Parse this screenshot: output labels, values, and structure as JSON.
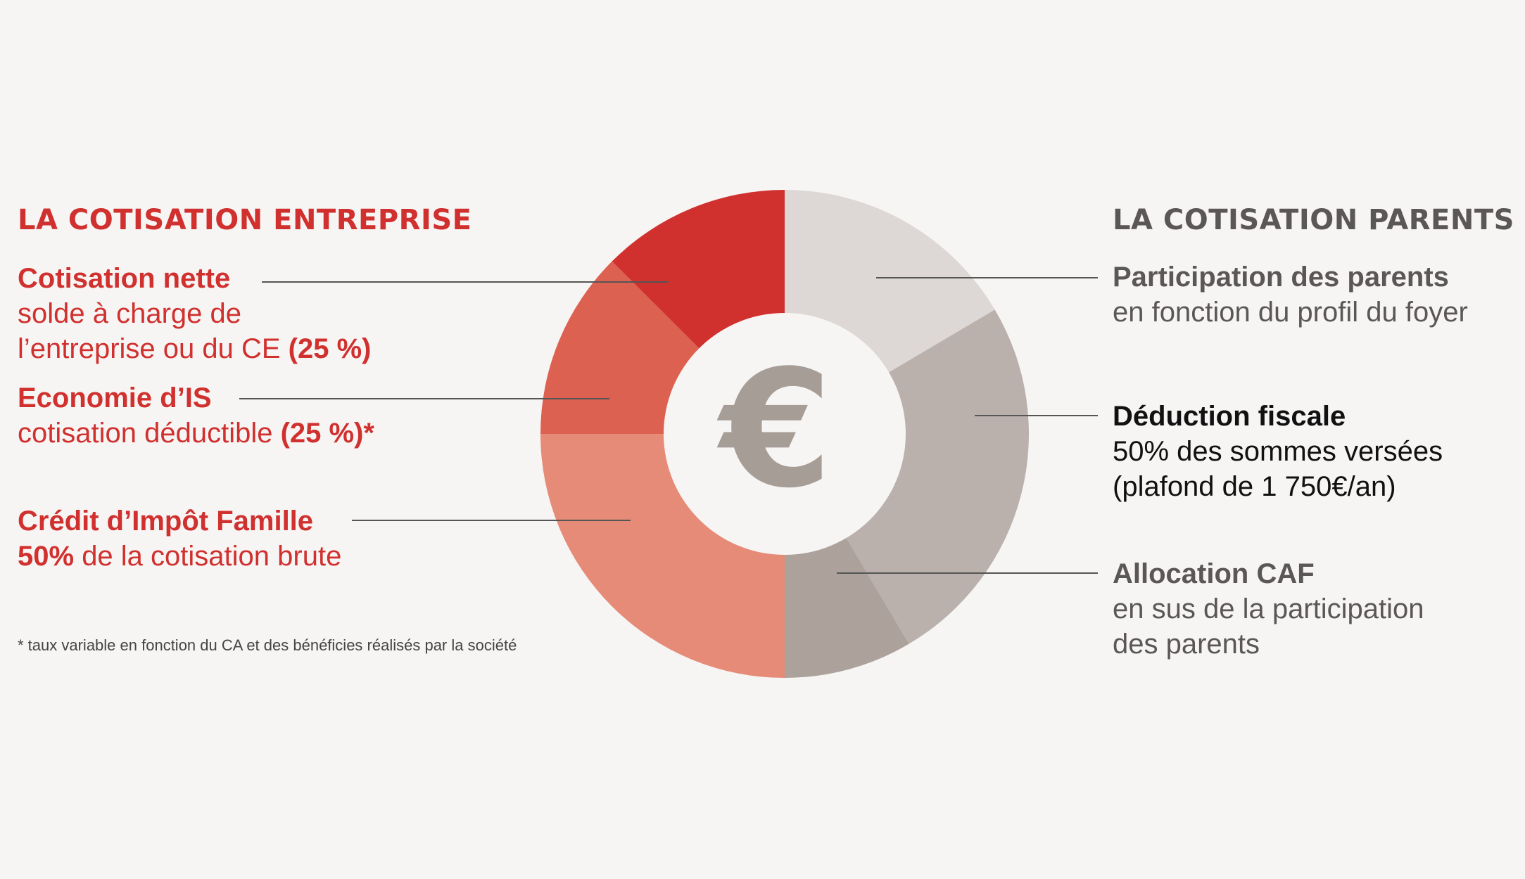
{
  "left": {
    "heading": "LA COTISATION ENTREPRISE",
    "items": [
      {
        "title": "Cotisation nette",
        "line1": "solde à charge de",
        "line2": "l’entreprise ou du CE",
        "pct": "(25 %)"
      },
      {
        "title": "Economie d’IS",
        "line1": "cotisation déductible",
        "pct": "(25 %)*"
      },
      {
        "title": "Crédit d’Impôt Famille",
        "bold_prefix": "50%",
        "line1": "de la cotisation brute"
      }
    ],
    "footnote": "* taux variable en fonction du CA et des bénéficies réalisés par la société"
  },
  "right": {
    "heading": "LA COTISATION PARENTS",
    "items": [
      {
        "title": "Participation des parents",
        "line1": "en fonction du profil du foyer"
      },
      {
        "title": "Déduction fiscale",
        "line1": "50% des sommes versées",
        "line2": "(plafond de 1 750€/an)"
      },
      {
        "title": "Allocation CAF",
        "line1": "en sus de la participation",
        "line2": "des parents"
      }
    ]
  },
  "center_symbol": "€",
  "colors": {
    "background": "#f7f5f4",
    "red_heading": "#d0302e",
    "grey_heading": "#5a5756",
    "symbol": "#a69d97",
    "leader": "#555555"
  },
  "chart_data": {
    "type": "pie",
    "variant": "donut",
    "slices": [
      {
        "name": "Participation des parents",
        "value": 16.5,
        "color": "#ddd8d5"
      },
      {
        "name": "Déduction fiscale",
        "value": 25,
        "color": "#bab1ac"
      },
      {
        "name": "Allocation CAF",
        "value": 8.5,
        "color": "#aca29b"
      },
      {
        "name": "Crédit d’Impôt Famille",
        "value": 25,
        "color": "#e68b78"
      },
      {
        "name": "Economie d’IS",
        "value": 12.5,
        "color": "#dc6150"
      },
      {
        "name": "Cotisation nette",
        "value": 12.5,
        "color": "#d0302e"
      }
    ]
  }
}
